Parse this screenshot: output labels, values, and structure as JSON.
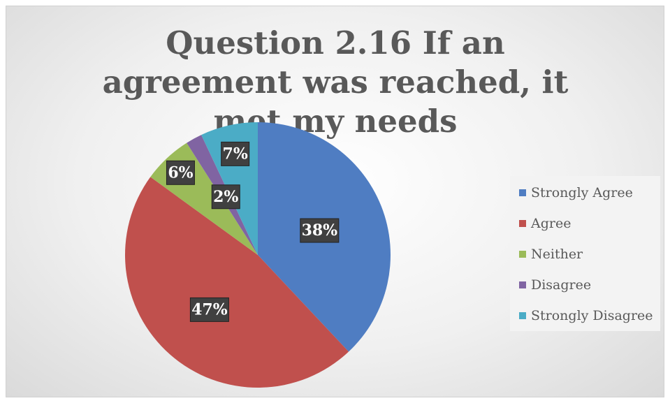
{
  "chart_data": {
    "type": "pie",
    "title": "Question 2.16 If an agreement was reached, it met my needs",
    "categories": [
      "Strongly Agree",
      "Agree",
      "Neither",
      "Disagree",
      "Strongly Disagree"
    ],
    "values": [
      38,
      47,
      6,
      2,
      7
    ],
    "value_labels": [
      "38%",
      "47%",
      "6%",
      "2%",
      "7%"
    ],
    "colors": [
      "#4f7dc2",
      "#c0504d",
      "#9bbb59",
      "#8064a2",
      "#4bacc6"
    ],
    "legend": "right"
  }
}
